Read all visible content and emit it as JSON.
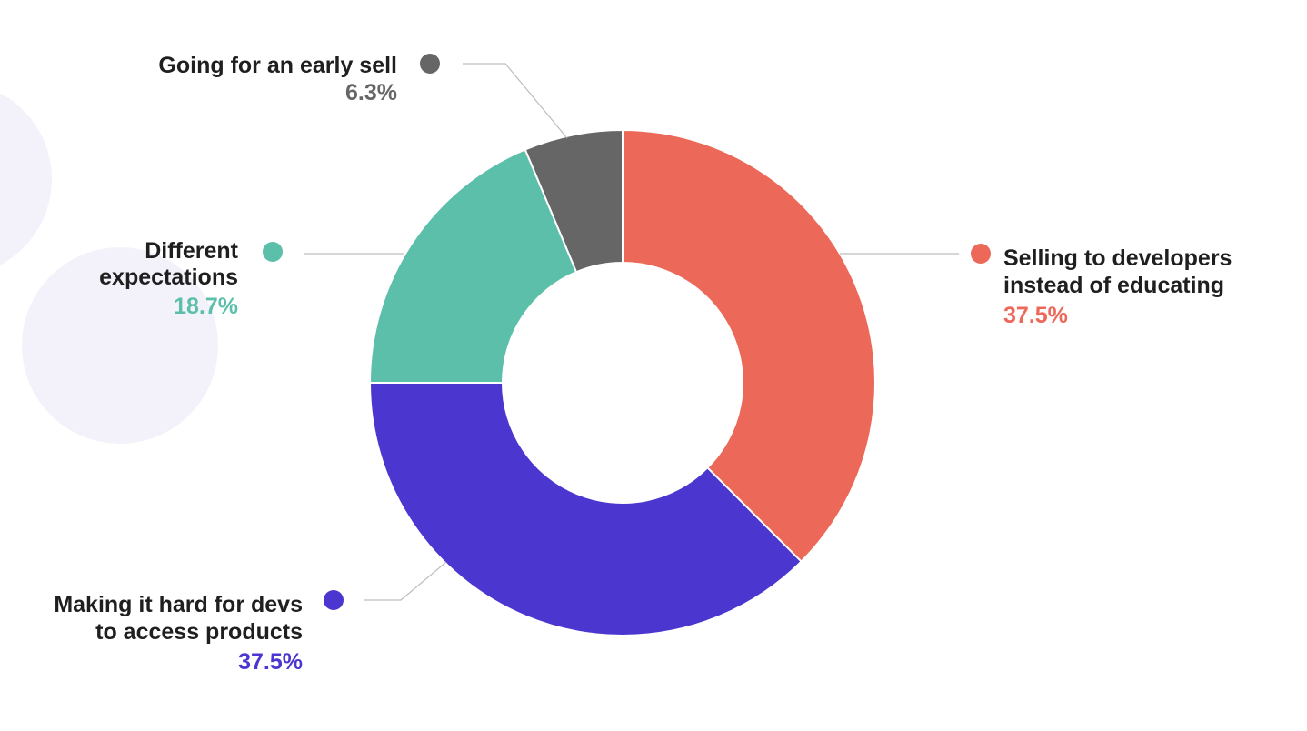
{
  "colors": {
    "background": "#ffffff",
    "decor_circle": "#f3f2fb",
    "label_text": "#1f1f1f",
    "leader_line": "#bdbdbd"
  },
  "chart_data": {
    "type": "donut",
    "title": "",
    "legend": "none",
    "start_angle_deg": 0,
    "direction": "clockwise",
    "slices": [
      {
        "lines": [
          "Selling to developers",
          "instead of educating"
        ],
        "value": 37.5,
        "value_label": "37.5%",
        "color": "#ec6858"
      },
      {
        "lines": [
          "Making it hard for devs",
          "to access products"
        ],
        "value": 37.5,
        "value_label": "37.5%",
        "color": "#4b37cf"
      },
      {
        "lines": [
          "Different",
          "expectations"
        ],
        "value": 18.7,
        "value_label": "18.7%",
        "color": "#5bbfaa"
      },
      {
        "lines": [
          "Going for an early sell"
        ],
        "value": 6.3,
        "value_label": "6.3%",
        "color": "#666666"
      }
    ]
  }
}
